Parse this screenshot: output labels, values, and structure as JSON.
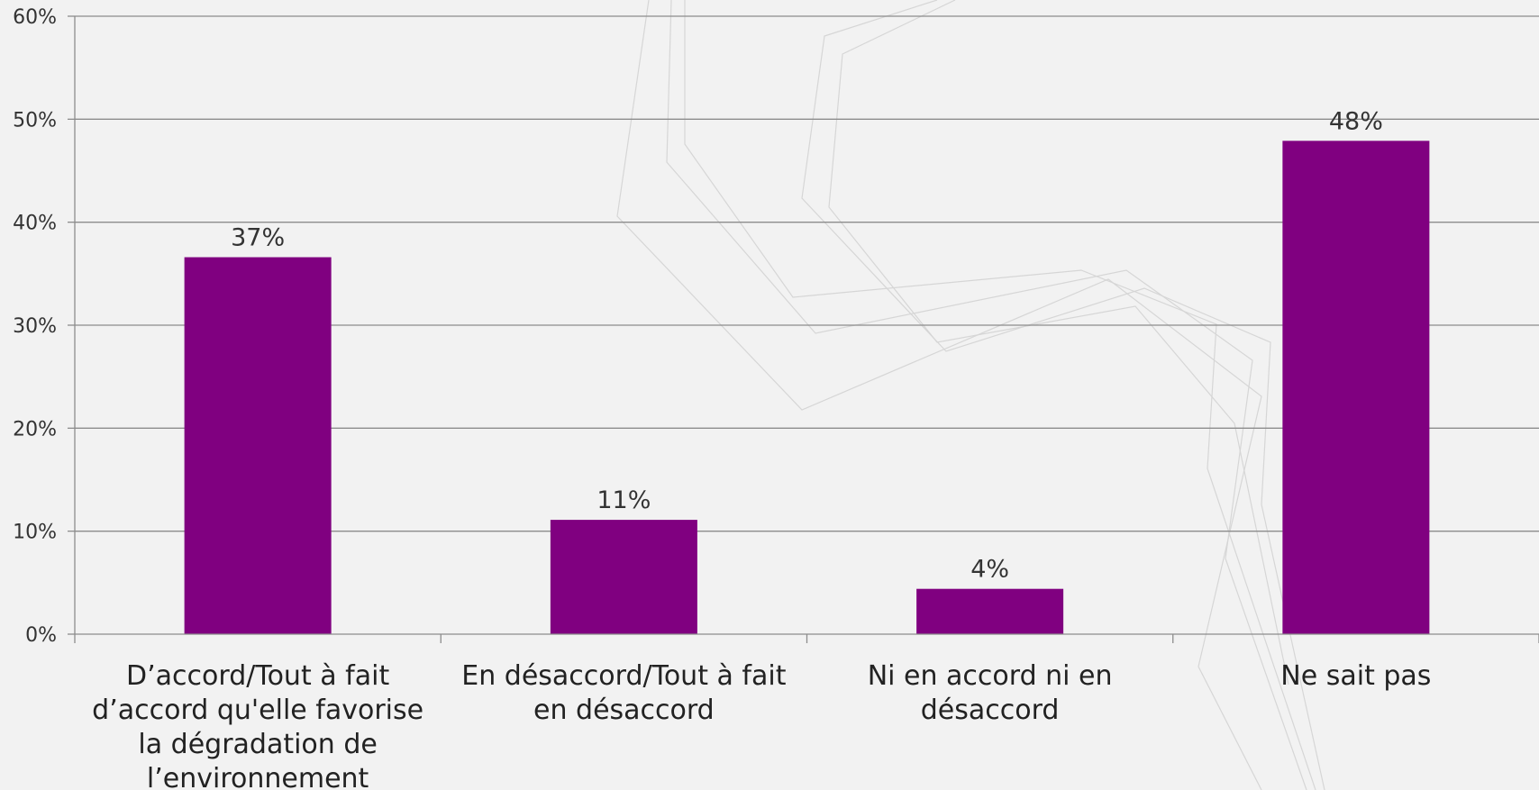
{
  "chart_data": {
    "type": "bar",
    "title": "",
    "xlabel": "",
    "ylabel": "",
    "categories": [
      "D’accord/Tout à fait d’accord qu'elle favorise la dégradation de l’environnement",
      "En désaccord/Tout à fait en désaccord",
      "Ni en accord ni en désaccord",
      "Ne sait pas"
    ],
    "category_lines": [
      [
        "D’accord/Tout à fait",
        "d’accord qu'elle favorise",
        "la dégradation de",
        "l’environnement"
      ],
      [
        "En désaccord/Tout à fait",
        "en désaccord"
      ],
      [
        "Ni en accord ni en",
        "désaccord"
      ],
      [
        "Ne sait pas"
      ]
    ],
    "values": [
      36.6,
      11.1,
      4.4,
      47.9
    ],
    "data_labels": [
      "37%",
      "11%",
      "4%",
      "48%"
    ],
    "ylim": [
      0,
      60
    ],
    "yticks": [
      0,
      10,
      20,
      30,
      40,
      50,
      60
    ],
    "ytick_labels": [
      "0%",
      "10%",
      "20%",
      "30%",
      "40%",
      "50%",
      "60%"
    ],
    "grid": true,
    "legend": "none",
    "bar_color": "#800080",
    "grid_color": "#8c8c8c"
  }
}
